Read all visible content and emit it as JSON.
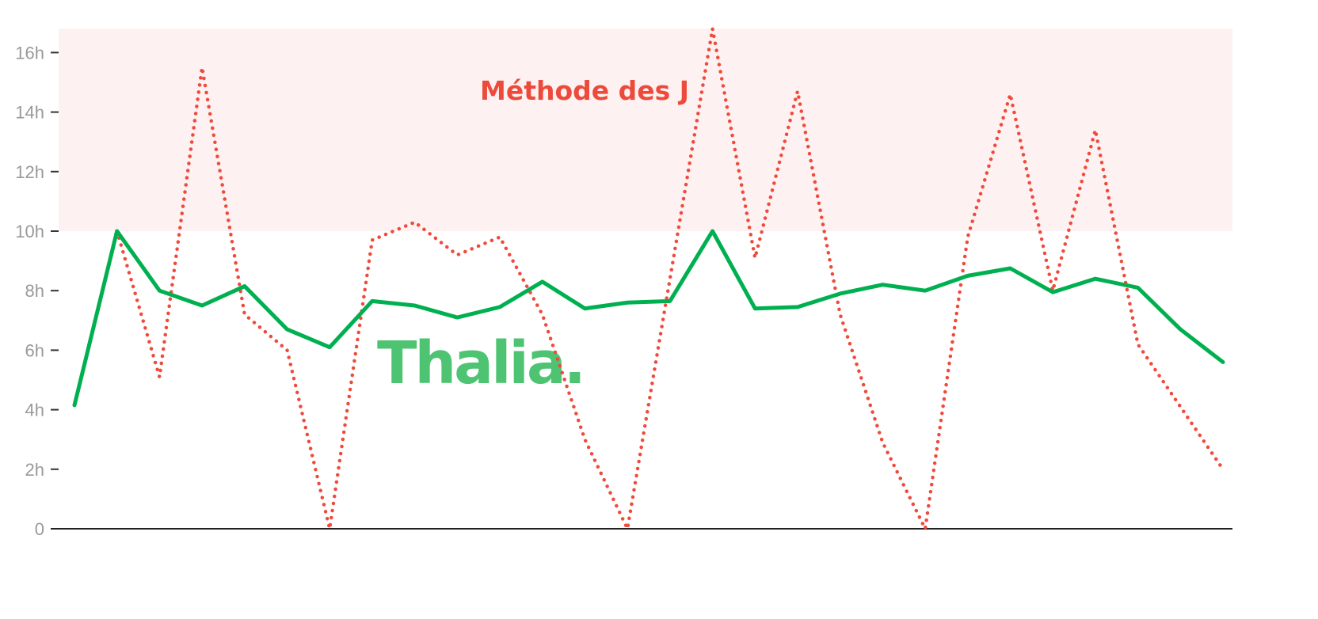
{
  "chart_data": {
    "type": "line",
    "title": "",
    "xlabel": "",
    "ylabel": "",
    "ylim": [
      0,
      17
    ],
    "yticks": [
      0,
      2,
      4,
      6,
      8,
      10,
      12,
      14,
      16
    ],
    "ytick_labels": [
      "0",
      "2h",
      "4h",
      "6h",
      "8h",
      "10h",
      "12h",
      "14h",
      "16h"
    ],
    "grid": false,
    "x": [
      1,
      2,
      3,
      4,
      5,
      6,
      7,
      8,
      9,
      10,
      11,
      12,
      13,
      14,
      15,
      16,
      17,
      18,
      19,
      20,
      21,
      22,
      23,
      24,
      25,
      26,
      27,
      28
    ],
    "series": [
      {
        "color": "#00b050",
        "style": "solid",
        "values": [
          4.15,
          10,
          8,
          7.5,
          8.15,
          6.7,
          6.1,
          7.65,
          7.5,
          7.1,
          7.45,
          8.3,
          7.4,
          7.6,
          7.65,
          10,
          7.4,
          7.45,
          7.9,
          8.2,
          8.0,
          8.5,
          8.75,
          7.95,
          8.4,
          8.1,
          6.7,
          5.6
        ]
      },
      {
        "color": "#f04a3c",
        "style": "dotted",
        "values": [
          null,
          10,
          5.1,
          15.5,
          7.2,
          6,
          0,
          9.7,
          10.3,
          9.2,
          9.8,
          7.2,
          3.0,
          0,
          8.4,
          16.8,
          9.1,
          14.7,
          7.2,
          2.9,
          0,
          9.8,
          14.6,
          8.0,
          13.4,
          6.2,
          4.1,
          2.0
        ]
      }
    ],
    "band": {
      "from": 10,
      "to": 16.8,
      "color": "#fdf1f1",
      "label": "Méthode des J",
      "label_color": "#ec4b3b"
    },
    "logo": {
      "text": "Thalia.",
      "color": "#4ec473"
    }
  }
}
